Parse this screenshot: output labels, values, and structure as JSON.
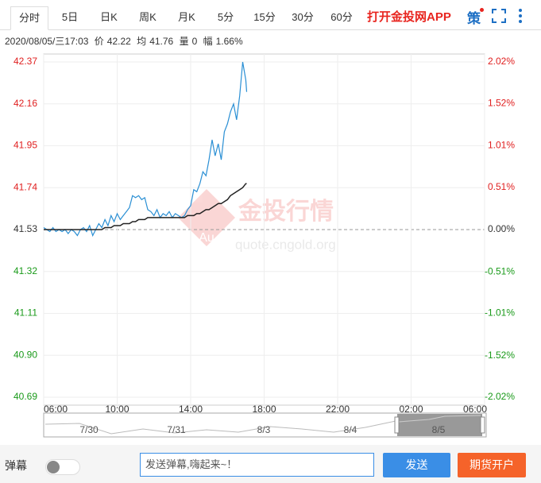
{
  "toolbar": {
    "tabs": [
      "分时",
      "5日",
      "日K",
      "周K",
      "月K",
      "5分",
      "15分",
      "30分",
      "60分"
    ],
    "active_tab": 0,
    "app_link": "打开金投网APP",
    "strategy": "策"
  },
  "info": {
    "datetime": "2020/08/05/三17:03",
    "price_label": "价",
    "price": "42.22",
    "avg_label": "均",
    "avg": "41.76",
    "volume_label": "量",
    "volume": "0",
    "change_label": "幅",
    "change": "1.66%"
  },
  "watermark": {
    "title": "金投行情",
    "url": "quote.cngold.org",
    "badge": "Au"
  },
  "chart_data": {
    "type": "line",
    "x": [
      "06:00",
      "06:10",
      "06:20",
      "06:30",
      "06:40",
      "06:50",
      "07:00",
      "07:10",
      "07:20",
      "07:30",
      "07:40",
      "07:50",
      "08:00",
      "08:10",
      "08:20",
      "08:30",
      "08:40",
      "08:50",
      "09:00",
      "09:10",
      "09:20",
      "09:30",
      "09:40",
      "09:50",
      "10:00",
      "10:10",
      "10:20",
      "10:30",
      "10:40",
      "10:50",
      "11:00",
      "11:10",
      "11:20",
      "11:30",
      "11:40",
      "11:50",
      "12:00",
      "12:10",
      "12:20",
      "12:30",
      "12:40",
      "12:50",
      "13:00",
      "13:10",
      "13:20",
      "13:30",
      "13:40",
      "13:50",
      "14:00",
      "14:10",
      "14:20",
      "14:30",
      "14:40",
      "14:50",
      "15:00",
      "15:10",
      "15:20",
      "15:30",
      "15:40",
      "15:50",
      "16:00",
      "16:10",
      "16:20",
      "16:30",
      "16:40",
      "16:50",
      "17:00",
      "17:03"
    ],
    "series": [
      {
        "name": "价",
        "color": "#2a8fd4",
        "values": [
          41.54,
          41.53,
          41.52,
          41.54,
          41.52,
          41.53,
          41.52,
          41.53,
          41.51,
          41.53,
          41.52,
          41.5,
          41.53,
          41.54,
          41.52,
          41.55,
          41.5,
          41.53,
          41.56,
          41.54,
          41.58,
          41.55,
          41.6,
          41.57,
          41.61,
          41.58,
          41.6,
          41.62,
          41.64,
          41.7,
          41.69,
          41.7,
          41.68,
          41.69,
          41.63,
          41.62,
          41.6,
          41.63,
          41.59,
          41.61,
          41.6,
          41.62,
          41.59,
          41.61,
          41.6,
          41.59,
          41.6,
          41.63,
          41.65,
          41.73,
          41.72,
          41.76,
          41.82,
          41.8,
          41.88,
          41.98,
          41.9,
          41.96,
          41.88,
          42.02,
          42.06,
          42.12,
          42.16,
          42.08,
          42.2,
          42.37,
          42.28,
          42.22
        ]
      },
      {
        "name": "均",
        "color": "#222222",
        "values": [
          41.53,
          41.53,
          41.53,
          41.53,
          41.53,
          41.53,
          41.53,
          41.53,
          41.53,
          41.53,
          41.53,
          41.53,
          41.53,
          41.53,
          41.53,
          41.53,
          41.53,
          41.53,
          41.53,
          41.53,
          41.54,
          41.54,
          41.54,
          41.55,
          41.55,
          41.55,
          41.56,
          41.56,
          41.56,
          41.57,
          41.57,
          41.58,
          41.58,
          41.58,
          41.59,
          41.59,
          41.59,
          41.59,
          41.59,
          41.59,
          41.59,
          41.59,
          41.59,
          41.59,
          41.59,
          41.59,
          41.59,
          41.6,
          41.6,
          41.6,
          41.61,
          41.61,
          41.62,
          41.63,
          41.63,
          41.64,
          41.65,
          41.66,
          41.66,
          41.67,
          41.68,
          41.7,
          41.71,
          41.72,
          41.73,
          41.74,
          41.76,
          41.76
        ]
      }
    ],
    "ylim": [
      40.69,
      42.37
    ],
    "yticks": [
      42.37,
      42.16,
      41.95,
      41.74,
      41.53,
      41.32,
      41.11,
      {
        "value": 40.9,
        "label": "40.90"
      },
      40.69
    ],
    "y2lim": [
      -2.02,
      2.02
    ],
    "y2ticks": [
      {
        "value": 2.02,
        "label": "2.02%"
      },
      {
        "value": 1.52,
        "label": "1.52%"
      },
      {
        "value": 1.01,
        "label": "1.01%"
      },
      {
        "value": 0.51,
        "label": "0.51%"
      },
      {
        "value": 0,
        "label": "0.00%"
      },
      {
        "value": -0.51,
        "label": "-0.51%"
      },
      {
        "value": -1.01,
        "label": "-1.01%"
      },
      {
        "value": -1.52,
        "label": "-1.52%"
      },
      {
        "value": -2.02,
        "label": "-2.02%"
      }
    ],
    "xticks": [
      "06:00",
      "10:00",
      "14:00",
      "18:00",
      "22:00",
      "02:00",
      "06:00"
    ],
    "baseline": 41.53,
    "up_color": "#e02020",
    "down_color": "#1a9a1a",
    "grid": true
  },
  "navigator": {
    "labels": [
      "7/30",
      "7/31",
      "8/3",
      "8/4",
      "8/5"
    ]
  },
  "footer": {
    "danmaku": "弹幕",
    "placeholder": "发送弹幕,嗨起来~！",
    "send": "发送",
    "open_account": "期货开户"
  }
}
